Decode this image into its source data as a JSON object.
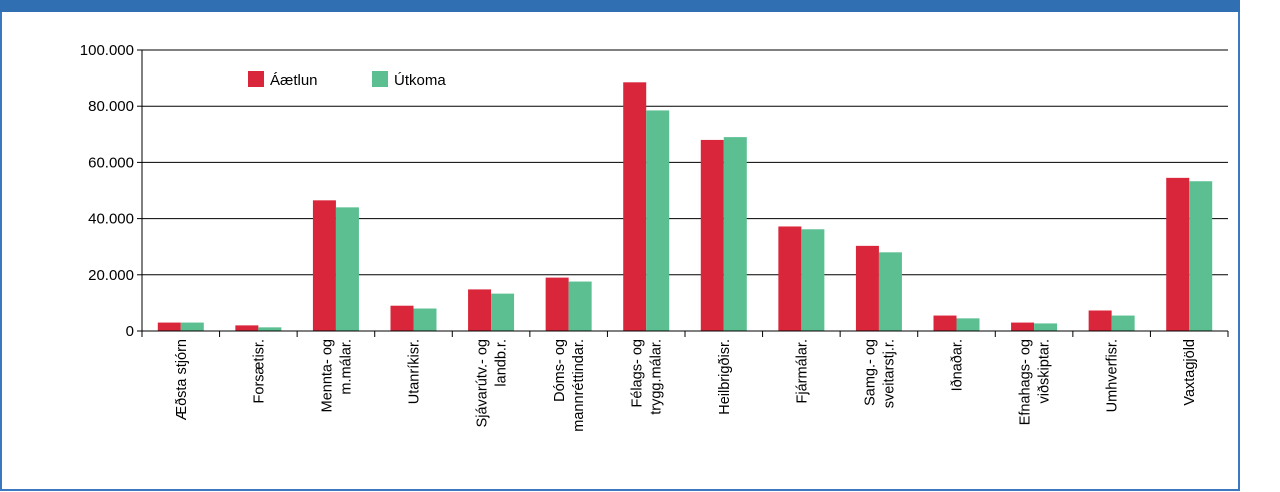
{
  "colors": {
    "frame": "#3b78bf",
    "band": "#2f6fb2",
    "grid": "#000000"
  },
  "chart_data": {
    "type": "bar",
    "title": "",
    "xlabel": "",
    "ylabel": "",
    "ylim": [
      0,
      100000
    ],
    "yticks": [
      0,
      20000,
      40000,
      60000,
      80000,
      100000
    ],
    "ytick_labels": [
      "0",
      "20.000",
      "40.000",
      "60.000",
      "80.000",
      "100.000"
    ],
    "grid": true,
    "legend_position": "top-left",
    "categories": [
      [
        "Æðsta stjórn"
      ],
      [
        "Forsætisr."
      ],
      [
        "Mennta- og",
        "m.málar."
      ],
      [
        "Utanríkisr."
      ],
      [
        "Sjávarútv.- og",
        "landb.r."
      ],
      [
        "Dóms- og",
        "mannréttindar."
      ],
      [
        "Félags- og",
        "trygg.málar."
      ],
      [
        "Heilbrigðisr."
      ],
      [
        "Fjármálar."
      ],
      [
        "Samg.- og",
        "sveitarstj.r."
      ],
      [
        "Iðnaðar."
      ],
      [
        "Efnahags- og",
        "viðskiptar."
      ],
      [
        "Umhverfisr."
      ],
      [
        "Vaxtagjöld"
      ]
    ],
    "series": [
      {
        "name": "Áætlun",
        "color": "#d9263a",
        "values": [
          3000,
          2000,
          46500,
          9000,
          14800,
          19000,
          88500,
          68000,
          37200,
          30300,
          5500,
          3000,
          7300,
          54500
        ]
      },
      {
        "name": "Útkoma",
        "color": "#5cbf91",
        "values": [
          3000,
          1300,
          44000,
          8000,
          13300,
          17600,
          78500,
          69000,
          36200,
          28000,
          4500,
          2700,
          5500,
          53300
        ]
      }
    ]
  }
}
